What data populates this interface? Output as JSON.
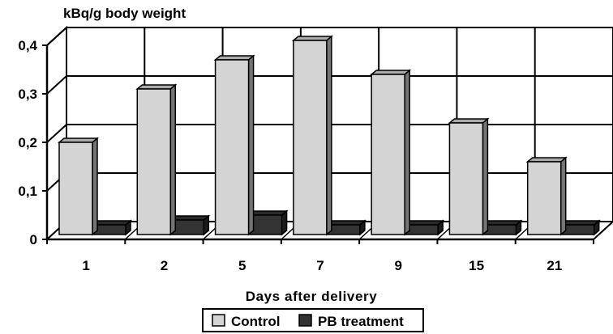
{
  "chart_data": {
    "type": "bar",
    "title": "",
    "ylabel": "kBq/g body weight",
    "xlabel": "Days after delivery",
    "categories": [
      "1",
      "2",
      "5",
      "7",
      "9",
      "15",
      "21"
    ],
    "series": [
      {
        "name": "Control",
        "values": [
          0.19,
          0.3,
          0.36,
          0.4,
          0.33,
          0.23,
          0.15
        ],
        "color": "#d4d4d4"
      },
      {
        "name": "PB treatment",
        "values": [
          0.02,
          0.03,
          0.04,
          0.02,
          0.02,
          0.02,
          0.02
        ],
        "color": "#333333"
      }
    ],
    "ylim": [
      0,
      0.4
    ],
    "yticks": [
      "0",
      "0,1",
      "0,2",
      "0,3",
      "0,4"
    ],
    "grid": true,
    "legend_position": "bottom-center",
    "style": "3d"
  }
}
